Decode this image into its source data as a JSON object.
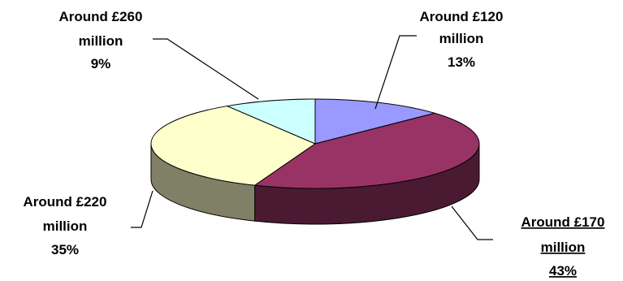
{
  "chart_data": {
    "type": "pie",
    "style": "3d",
    "title": "",
    "slices": [
      {
        "line1": "Around £120",
        "line2": "million",
        "pct_label": "13%",
        "value": 13,
        "top_color": "#9999ff",
        "side_color": "#5c5c99",
        "underlined": false
      },
      {
        "line1": "Around £170",
        "line2": "million",
        "pct_label": "43%",
        "value": 43,
        "top_color": "#993366",
        "side_color": "#4a1a33",
        "underlined": true
      },
      {
        "line1": "Around £220",
        "line2": "million",
        "pct_label": "35%",
        "value": 35,
        "top_color": "#ffffcc",
        "side_color": "#808066",
        "underlined": false
      },
      {
        "line1": "Around £260",
        "line2": "million",
        "pct_label": "9%",
        "value": 9,
        "top_color": "#ccffff",
        "side_color": "#668080",
        "underlined": false
      }
    ]
  }
}
